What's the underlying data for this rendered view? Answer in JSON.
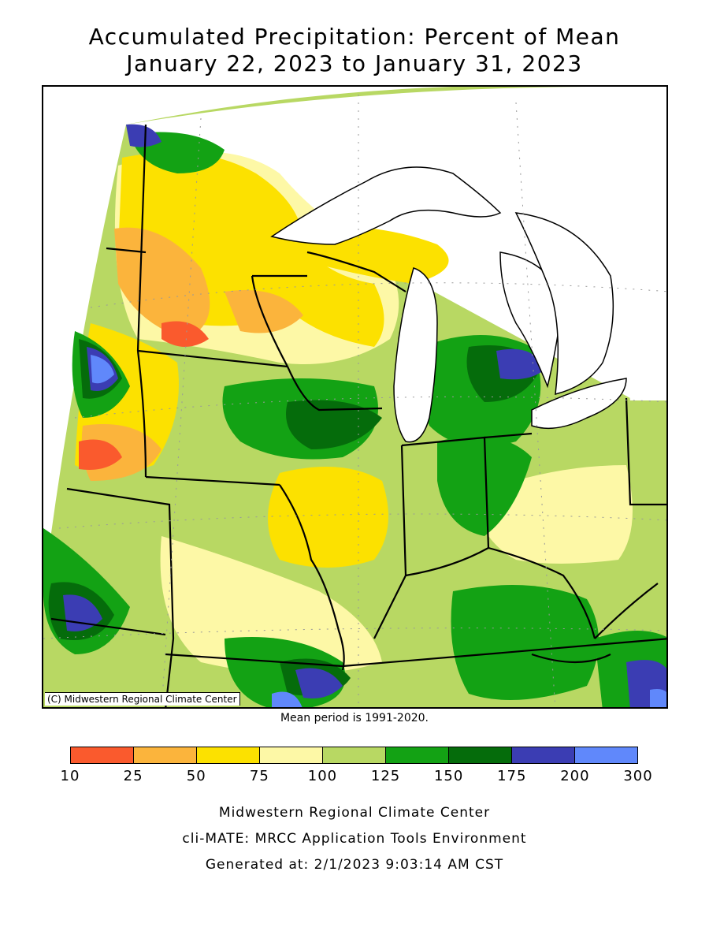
{
  "title": {
    "line1": "Accumulated Precipitation: Percent of Mean",
    "line2": "January 22, 2023 to January 31, 2023"
  },
  "map": {
    "copyright": "(C) Midwestern Regional Climate Center",
    "region": "Midwestern United States",
    "background_color": "#ffffff",
    "water_color": "#ffffff"
  },
  "mean_period": "Mean period is 1991-2020.",
  "legend": {
    "ticks": [
      "10",
      "25",
      "50",
      "75",
      "100",
      "125",
      "150",
      "175",
      "200",
      "300"
    ],
    "colors": [
      "#fa5a2d",
      "#fbb43c",
      "#fce100",
      "#fdf8a6",
      "#b8d863",
      "#13a214",
      "#056c0b",
      "#3b3db3",
      "#6088fb"
    ]
  },
  "footer": {
    "line1": "Midwestern Regional Climate Center",
    "line2": "cli-MATE: MRCC Application Tools Environment",
    "line3": "Generated at: 2/1/2023 9:03:14 AM CST"
  }
}
